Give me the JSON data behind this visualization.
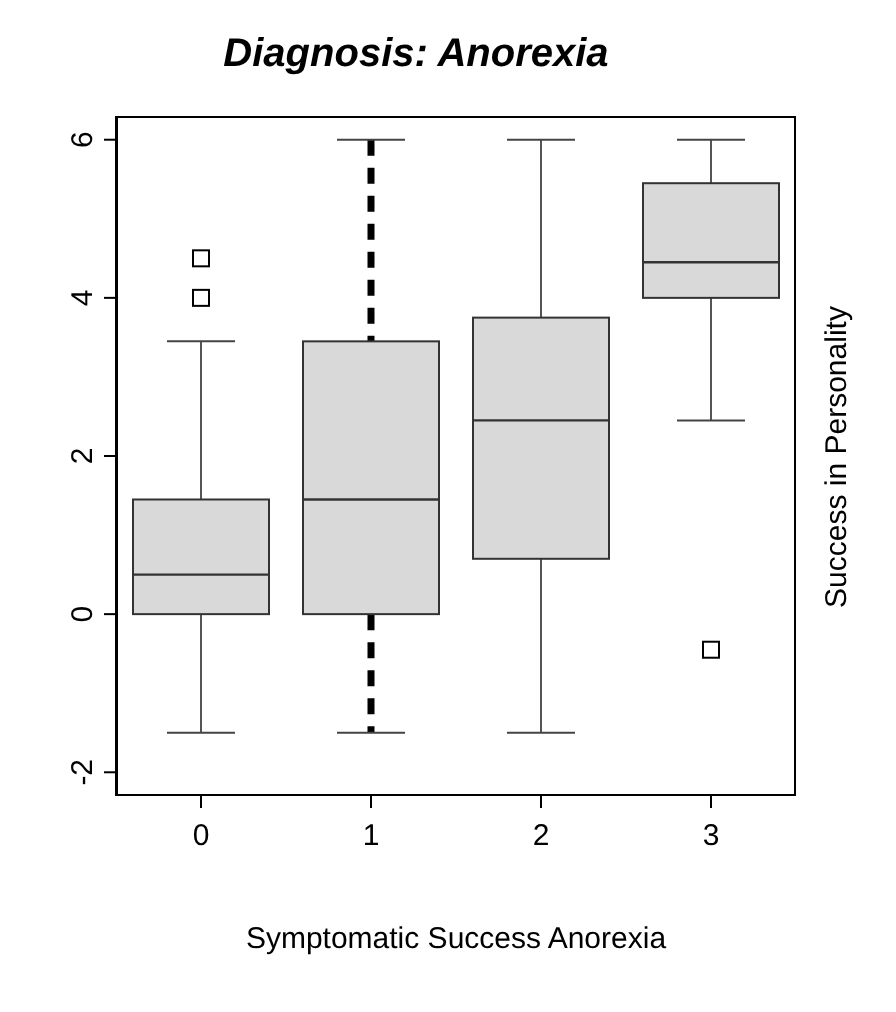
{
  "chart_data": {
    "type": "box",
    "title": "Diagnosis: Anorexia",
    "xlabel": "Symptomatic Success Anorexia",
    "ylabel": "Success in Personality",
    "categories": [
      "0",
      "1",
      "2",
      "3"
    ],
    "ylim": [
      -2.3,
      6.3
    ],
    "yticks": [
      -2,
      0,
      2,
      4,
      6
    ],
    "marker": "square",
    "series": [
      {
        "color": "#d9d9d9",
        "boxes": [
          {
            "low": -1.5,
            "q1": 0,
            "median": 0.5,
            "q3": 1.45,
            "high": 3.45,
            "outliers": [
              4.5,
              4.0
            ]
          },
          null,
          {
            "low": -1.5,
            "q1": 0.7,
            "median": 2.45,
            "q3": 3.75,
            "high": 6
          },
          {
            "low": 2.45,
            "q1": 4.0,
            "median": 4.45,
            "q3": 5.45,
            "high": 6,
            "outliers": [
              -0.45
            ]
          }
        ]
      },
      {
        "color": "#d9d9d9",
        "line_style": "dashed",
        "boxes": [
          null,
          {
            "low": -1.5,
            "q1": 0,
            "median": 1.45,
            "q3": 3.45,
            "high": 6
          },
          null,
          null
        ]
      }
    ]
  }
}
